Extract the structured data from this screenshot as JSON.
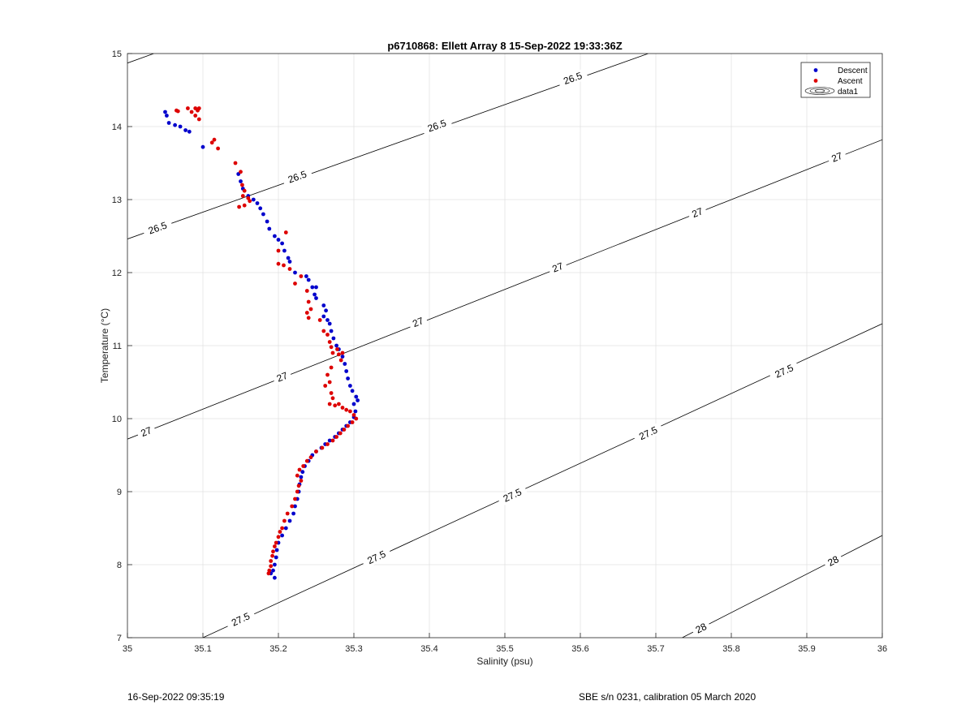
{
  "chart_data": {
    "type": "scatter",
    "title": "p6710868: Ellett Array 8 15-Sep-2022 19:33:36Z",
    "xlabel": "Salinity (psu)",
    "ylabel": "Temperature (°C)",
    "xlim": [
      35,
      36
    ],
    "ylim": [
      7,
      15
    ],
    "xticks": [
      "35",
      "35.1",
      "35.2",
      "35.3",
      "35.4",
      "35.5",
      "35.6",
      "35.7",
      "35.8",
      "35.9",
      "36"
    ],
    "yticks": [
      "7",
      "8",
      "9",
      "10",
      "11",
      "12",
      "13",
      "14",
      "15"
    ],
    "grid": true,
    "legend_position": "top-right",
    "legend": [
      "Descent",
      "Ascent",
      "data1"
    ],
    "colors": {
      "descent": "#0000cc",
      "ascent": "#dd0000",
      "contour": "#000000",
      "grid": "#e3e3e3"
    },
    "contours": [
      {
        "level": "26.5",
        "points": [
          [
            35.0,
            14.87
          ],
          [
            35.035,
            15.0
          ]
        ],
        "labels": []
      },
      {
        "level": "26.5",
        "points": [
          [
            35.0,
            12.46
          ],
          [
            35.69,
            15.0
          ]
        ],
        "labels": [
          [
            35.04,
            12.61
          ],
          [
            35.225,
            13.31
          ],
          [
            35.41,
            14.01
          ],
          [
            35.59,
            14.66
          ]
        ]
      },
      {
        "level": "27",
        "points": [
          [
            35.0,
            9.72
          ],
          [
            36.0,
            13.82
          ]
        ],
        "labels": [
          [
            35.025,
            9.82
          ],
          [
            35.205,
            10.57
          ],
          [
            35.385,
            11.32
          ],
          [
            35.57,
            12.07
          ],
          [
            35.755,
            12.82
          ],
          [
            35.94,
            13.58
          ]
        ]
      },
      {
        "level": "27.5",
        "points": [
          [
            35.1,
            7.0
          ],
          [
            36.0,
            11.3
          ]
        ],
        "labels": [
          [
            35.15,
            7.25
          ],
          [
            35.33,
            8.1
          ],
          [
            35.51,
            8.95
          ],
          [
            35.69,
            9.8
          ],
          [
            35.87,
            10.65
          ]
        ]
      },
      {
        "level": "28",
        "points": [
          [
            35.735,
            7.0
          ],
          [
            36.0,
            8.4
          ]
        ],
        "labels": [
          [
            35.76,
            7.13
          ],
          [
            35.935,
            8.05
          ]
        ]
      }
    ],
    "series": [
      {
        "name": "Descent",
        "points": [
          [
            35.05,
            14.2
          ],
          [
            35.052,
            14.15
          ],
          [
            35.055,
            14.05
          ],
          [
            35.063,
            14.02
          ],
          [
            35.07,
            14.0
          ],
          [
            35.077,
            13.95
          ],
          [
            35.082,
            13.93
          ],
          [
            35.1,
            13.72
          ],
          [
            35.147,
            13.35
          ],
          [
            35.15,
            13.25
          ],
          [
            35.153,
            13.15
          ],
          [
            35.16,
            13.05
          ],
          [
            35.167,
            13.0
          ],
          [
            35.172,
            12.95
          ],
          [
            35.176,
            12.88
          ],
          [
            35.18,
            12.8
          ],
          [
            35.185,
            12.7
          ],
          [
            35.188,
            12.6
          ],
          [
            35.195,
            12.5
          ],
          [
            35.2,
            12.45
          ],
          [
            35.205,
            12.4
          ],
          [
            35.208,
            12.3
          ],
          [
            35.213,
            12.2
          ],
          [
            35.215,
            12.15
          ],
          [
            35.222,
            12.0
          ],
          [
            35.237,
            11.95
          ],
          [
            35.24,
            11.9
          ],
          [
            35.245,
            11.8
          ],
          [
            35.25,
            11.8
          ],
          [
            35.248,
            11.7
          ],
          [
            35.25,
            11.65
          ],
          [
            35.26,
            11.55
          ],
          [
            35.263,
            11.48
          ],
          [
            35.26,
            11.4
          ],
          [
            35.265,
            11.35
          ],
          [
            35.268,
            11.3
          ],
          [
            35.27,
            11.2
          ],
          [
            35.273,
            11.1
          ],
          [
            35.277,
            11.0
          ],
          [
            35.28,
            10.95
          ],
          [
            35.285,
            10.85
          ],
          [
            35.288,
            10.75
          ],
          [
            35.29,
            10.65
          ],
          [
            35.292,
            10.55
          ],
          [
            35.295,
            10.45
          ],
          [
            35.298,
            10.38
          ],
          [
            35.303,
            10.3
          ],
          [
            35.305,
            10.25
          ],
          [
            35.3,
            10.2
          ],
          [
            35.302,
            10.1
          ],
          [
            35.3,
            10.02
          ],
          [
            35.295,
            9.95
          ],
          [
            35.29,
            9.9
          ],
          [
            35.285,
            9.85
          ],
          [
            35.28,
            9.8
          ],
          [
            35.275,
            9.75
          ],
          [
            35.268,
            9.7
          ],
          [
            35.262,
            9.65
          ],
          [
            35.257,
            9.6
          ],
          [
            35.25,
            9.55
          ],
          [
            35.245,
            9.5
          ],
          [
            35.24,
            9.42
          ],
          [
            35.235,
            9.35
          ],
          [
            35.232,
            9.27
          ],
          [
            35.23,
            9.2
          ],
          [
            35.228,
            9.1
          ],
          [
            35.227,
            9.0
          ],
          [
            35.225,
            8.9
          ],
          [
            35.222,
            8.8
          ],
          [
            35.22,
            8.7
          ],
          [
            35.215,
            8.6
          ],
          [
            35.21,
            8.5
          ],
          [
            35.205,
            8.4
          ],
          [
            35.2,
            8.3
          ],
          [
            35.198,
            8.2
          ],
          [
            35.197,
            8.1
          ],
          [
            35.195,
            8.0
          ],
          [
            35.193,
            7.92
          ],
          [
            35.19,
            7.88
          ],
          [
            35.195,
            7.82
          ]
        ]
      },
      {
        "name": "Ascent",
        "points": [
          [
            35.065,
            14.22
          ],
          [
            35.067,
            14.21
          ],
          [
            35.08,
            14.25
          ],
          [
            35.085,
            14.2
          ],
          [
            35.09,
            14.25
          ],
          [
            35.093,
            14.22
          ],
          [
            35.095,
            14.25
          ],
          [
            35.09,
            14.15
          ],
          [
            35.095,
            14.1
          ],
          [
            35.112,
            13.78
          ],
          [
            35.115,
            13.82
          ],
          [
            35.12,
            13.7
          ],
          [
            35.143,
            13.5
          ],
          [
            35.15,
            13.38
          ],
          [
            35.152,
            13.2
          ],
          [
            35.155,
            13.12
          ],
          [
            35.153,
            13.05
          ],
          [
            35.16,
            13.02
          ],
          [
            35.162,
            12.98
          ],
          [
            35.148,
            12.9
          ],
          [
            35.155,
            12.92
          ],
          [
            35.21,
            12.55
          ],
          [
            35.2,
            12.3
          ],
          [
            35.2,
            12.12
          ],
          [
            35.207,
            12.1
          ],
          [
            35.215,
            12.05
          ],
          [
            35.23,
            11.95
          ],
          [
            35.222,
            11.85
          ],
          [
            35.238,
            11.75
          ],
          [
            35.24,
            11.6
          ],
          [
            35.243,
            11.5
          ],
          [
            35.238,
            11.45
          ],
          [
            35.24,
            11.38
          ],
          [
            35.255,
            11.35
          ],
          [
            35.26,
            11.2
          ],
          [
            35.265,
            11.15
          ],
          [
            35.268,
            11.05
          ],
          [
            35.27,
            10.98
          ],
          [
            35.272,
            10.9
          ],
          [
            35.278,
            10.95
          ],
          [
            35.28,
            10.88
          ],
          [
            35.283,
            10.8
          ],
          [
            35.285,
            10.9
          ],
          [
            35.27,
            10.7
          ],
          [
            35.265,
            10.6
          ],
          [
            35.268,
            10.5
          ],
          [
            35.262,
            10.45
          ],
          [
            35.27,
            10.35
          ],
          [
            35.272,
            10.28
          ],
          [
            35.268,
            10.2
          ],
          [
            35.275,
            10.18
          ],
          [
            35.28,
            10.2
          ],
          [
            35.285,
            10.15
          ],
          [
            35.29,
            10.12
          ],
          [
            35.295,
            10.1
          ],
          [
            35.3,
            10.05
          ],
          [
            35.303,
            10.0
          ],
          [
            35.298,
            9.95
          ],
          [
            35.292,
            9.9
          ],
          [
            35.287,
            9.85
          ],
          [
            35.282,
            9.8
          ],
          [
            35.277,
            9.75
          ],
          [
            35.272,
            9.7
          ],
          [
            35.265,
            9.65
          ],
          [
            35.258,
            9.6
          ],
          [
            35.25,
            9.55
          ],
          [
            35.243,
            9.47
          ],
          [
            35.238,
            9.42
          ],
          [
            35.233,
            9.35
          ],
          [
            35.228,
            9.3
          ],
          [
            35.225,
            9.22
          ],
          [
            35.23,
            9.15
          ],
          [
            35.227,
            9.08
          ],
          [
            35.225,
            9.0
          ],
          [
            35.222,
            8.9
          ],
          [
            35.218,
            8.8
          ],
          [
            35.212,
            8.7
          ],
          [
            35.208,
            8.6
          ],
          [
            35.205,
            8.5
          ],
          [
            35.202,
            8.45
          ],
          [
            35.2,
            8.38
          ],
          [
            35.197,
            8.3
          ],
          [
            35.195,
            8.25
          ],
          [
            35.193,
            8.18
          ],
          [
            35.192,
            8.12
          ],
          [
            35.19,
            8.05
          ],
          [
            35.19,
            7.98
          ],
          [
            35.188,
            7.92
          ],
          [
            35.187,
            7.88
          ]
        ]
      }
    ]
  },
  "footer": {
    "left": "16-Sep-2022 09:35:19",
    "right": "SBE s/n 0231, calibration 05 March 2020"
  }
}
